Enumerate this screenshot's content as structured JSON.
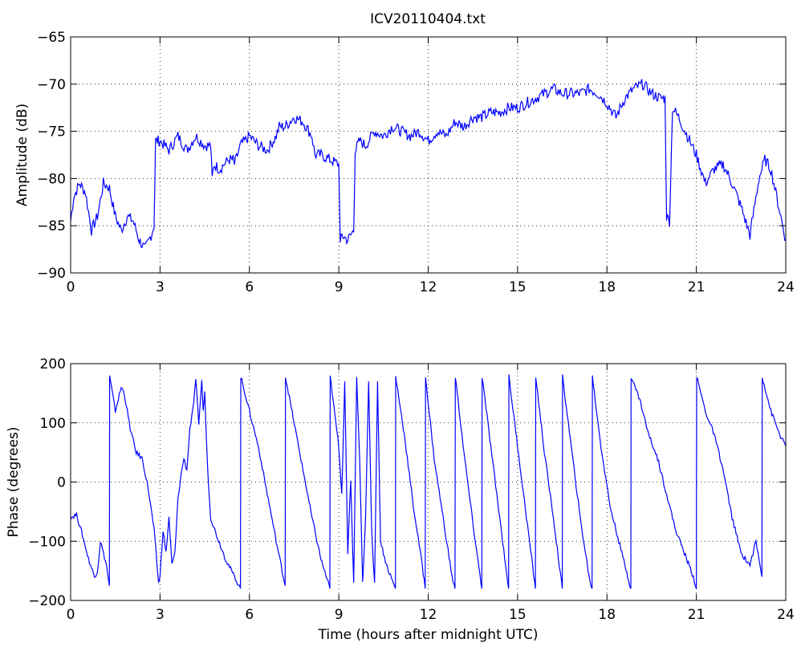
{
  "figure": {
    "title": "ICV20110404.txt"
  },
  "colors": {
    "line": "#0000ff",
    "axes": "#000000",
    "grid": "#000000",
    "background": "#ffffff"
  },
  "chart_data": [
    {
      "type": "line",
      "title": "ICV20110404.txt",
      "xlabel": "",
      "ylabel": "Amplitude (dB)",
      "xlim": [
        0,
        24
      ],
      "ylim": [
        -90,
        -65
      ],
      "xticks": [
        0,
        3,
        6,
        9,
        12,
        15,
        18,
        21,
        24
      ],
      "yticks": [
        -65,
        -70,
        -75,
        -80,
        -85,
        -90
      ],
      "xtick_labels": [
        "0",
        "3",
        "6",
        "9",
        "12",
        "15",
        "18",
        "21",
        "24"
      ],
      "ytick_labels": [
        "−65",
        "−70",
        "−75",
        "−80",
        "−85",
        "−90"
      ],
      "grid": true,
      "series": [
        {
          "x": [
            0,
            0.1,
            0.3,
            0.5,
            0.7,
            0.9,
            1.1,
            1.3,
            1.5,
            1.7,
            1.9,
            2.1,
            2.3,
            2.5,
            2.7,
            2.8,
            2.85,
            3.0,
            3.3,
            3.6,
            3.9,
            4.2,
            4.5,
            4.7,
            4.75,
            4.8,
            5.0,
            5.3,
            5.45,
            5.5,
            5.7,
            6.0,
            6.3,
            6.6,
            6.9,
            7.0,
            7.2,
            7.5,
            7.8,
            8.1,
            8.2,
            8.4,
            8.7,
            9.0,
            9.05,
            9.1,
            9.3,
            9.5,
            9.55,
            9.7,
            9.9,
            10.2,
            10.5,
            10.8,
            11.1,
            11.4,
            11.7,
            12.0,
            12.3,
            12.6,
            12.9,
            13.2,
            13.5,
            13.8,
            14.1,
            14.4,
            14.7,
            15.0,
            15.3,
            15.6,
            15.9,
            16.2,
            16.5,
            16.8,
            17.1,
            17.4,
            17.7,
            18.0,
            18.3,
            18.6,
            18.9,
            19.2,
            19.5,
            19.8,
            19.95,
            20.0,
            20.1,
            20.2,
            20.4,
            20.7,
            21.0,
            21.3,
            21.6,
            21.9,
            22.2,
            22.5,
            22.8,
            22.9,
            23.1,
            23.3,
            23.5,
            23.7,
            24.0
          ],
          "y": [
            -84.5,
            -82,
            -80.5,
            -81.5,
            -85.5,
            -84,
            -80.5,
            -81,
            -84,
            -85.5,
            -84,
            -84.5,
            -86.5,
            -87.5,
            -86,
            -85,
            -76,
            -76,
            -77,
            -75.5,
            -77,
            -75.5,
            -76.5,
            -76.5,
            -80,
            -78.5,
            -79,
            -78,
            -78,
            -78.5,
            -76.5,
            -75.5,
            -76.5,
            -77,
            -75.5,
            -74.5,
            -74.5,
            -73.5,
            -74,
            -75.5,
            -77.5,
            -77.5,
            -78,
            -78.5,
            -87,
            -86,
            -86.5,
            -85.5,
            -77,
            -76,
            -76.5,
            -75,
            -75.5,
            -74.5,
            -75,
            -75.5,
            -75,
            -76,
            -75,
            -75.5,
            -74,
            -74.5,
            -73.5,
            -73.5,
            -73,
            -73,
            -72.5,
            -72.5,
            -72,
            -71.5,
            -71,
            -70.5,
            -71,
            -71,
            -71,
            -70.5,
            -71,
            -72,
            -73.5,
            -71.5,
            -70.5,
            -70,
            -71,
            -71.5,
            -71.5,
            -84,
            -84.5,
            -72.5,
            -73.5,
            -75.5,
            -77.5,
            -80.5,
            -79,
            -78.5,
            -80.5,
            -83,
            -86,
            -84,
            -80,
            -78,
            -79,
            -82,
            -86.5
          ]
        }
      ]
    },
    {
      "type": "line",
      "title": "",
      "xlabel": "Time (hours after midnight UTC)",
      "ylabel": "Phase (degrees)",
      "xlim": [
        0,
        24
      ],
      "ylim": [
        -200,
        200
      ],
      "xticks": [
        0,
        3,
        6,
        9,
        12,
        15,
        18,
        21,
        24
      ],
      "yticks": [
        200,
        100,
        0,
        -100,
        -200
      ],
      "xtick_labels": [
        "0",
        "3",
        "6",
        "9",
        "12",
        "15",
        "18",
        "21",
        "24"
      ],
      "ytick_labels": [
        "200",
        "100",
        "0",
        "−100",
        "−200"
      ],
      "grid": true,
      "series": [
        {
          "x": [
            0,
            0.2,
            0.4,
            0.6,
            0.8,
            0.9,
            1.0,
            1.1,
            1.2,
            1.3,
            1.31,
            1.5,
            1.7,
            1.8,
            2.0,
            2.2,
            2.4,
            2.6,
            2.8,
            2.95,
            3.0,
            3.1,
            3.2,
            3.3,
            3.4,
            3.5,
            3.6,
            3.7,
            3.8,
            3.9,
            4.0,
            4.1,
            4.2,
            4.3,
            4.4,
            4.45,
            4.5,
            4.6,
            4.7,
            4.9,
            5.2,
            5.5,
            5.7,
            5.71,
            6.0,
            6.3,
            6.6,
            6.9,
            7.2,
            7.21,
            7.5,
            7.8,
            8.1,
            8.4,
            8.7,
            8.71,
            9.0,
            9.1,
            9.2,
            9.3,
            9.4,
            9.5,
            9.6,
            9.7,
            9.8,
            9.9,
            10.0,
            10.1,
            10.2,
            10.3,
            10.4,
            10.6,
            10.9,
            10.91,
            11.2,
            11.5,
            11.8,
            11.9,
            11.91,
            12.2,
            12.5,
            12.8,
            12.9,
            12.91,
            13.2,
            13.5,
            13.8,
            13.81,
            14.1,
            14.4,
            14.7,
            14.71,
            15.0,
            15.3,
            15.6,
            15.61,
            15.9,
            16.2,
            16.5,
            16.51,
            16.8,
            17.1,
            17.4,
            17.5,
            17.51,
            17.8,
            18.1,
            18.4,
            18.7,
            18.8,
            18.81,
            19.1,
            19.4,
            19.7,
            20.0,
            20.3,
            20.6,
            20.9,
            21.0,
            21.01,
            21.3,
            21.6,
            21.9,
            22.2,
            22.5,
            22.8,
            23.0,
            23.2,
            23.21,
            23.5,
            23.8,
            24.0
          ],
          "y": [
            -60,
            -55,
            -90,
            -130,
            -160,
            -150,
            -100,
            -120,
            -140,
            -175,
            178,
            120,
            160,
            150,
            90,
            50,
            40,
            -10,
            -80,
            -170,
            -160,
            -80,
            -120,
            -60,
            -140,
            -120,
            -30,
            10,
            40,
            20,
            90,
            120,
            170,
            100,
            170,
            120,
            150,
            20,
            -60,
            -90,
            -130,
            -160,
            -180,
            178,
            120,
            60,
            -20,
            -100,
            -175,
            178,
            100,
            20,
            -60,
            -130,
            -180,
            178,
            60,
            -20,
            170,
            -120,
            0,
            -170,
            178,
            40,
            -170,
            -60,
            170,
            -80,
            -170,
            170,
            -100,
            -140,
            -180,
            178,
            80,
            -40,
            -140,
            -180,
            178,
            40,
            -60,
            -160,
            -180,
            178,
            50,
            -70,
            -180,
            178,
            60,
            -60,
            -180,
            178,
            60,
            -60,
            -180,
            178,
            50,
            -60,
            -180,
            178,
            60,
            -60,
            -160,
            -180,
            178,
            60,
            -40,
            -100,
            -160,
            -180,
            178,
            140,
            80,
            40,
            -20,
            -80,
            -120,
            -160,
            -180,
            178,
            120,
            80,
            20,
            -60,
            -120,
            -140,
            -100,
            -160,
            178,
            120,
            80,
            60
          ]
        }
      ]
    }
  ]
}
